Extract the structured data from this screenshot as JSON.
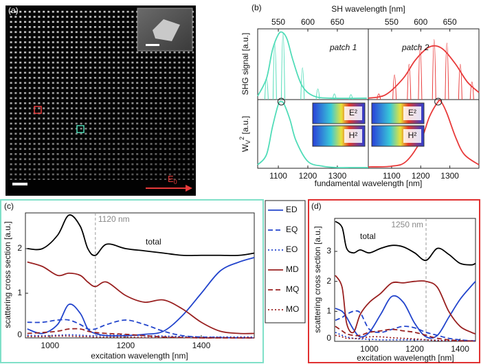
{
  "image_panel": {
    "label": "(a)",
    "field": "E",
    "field_sub": "0"
  },
  "chart_data": [
    {
      "type": "line",
      "panel": "(b)",
      "xlabel": "SH wavelength [nm]",
      "ylabel": "SHG signal [a.u.]",
      "annotation": "patch 1",
      "xlim": [
        515,
        702.5
      ],
      "xticks": [
        550,
        600,
        650
      ],
      "ylim": [
        0,
        1
      ],
      "series": [
        {
          "style": "line",
          "color": "#50dcb8",
          "x": [
            515,
            530,
            540,
            550,
            557,
            565,
            575,
            590,
            610,
            640,
            700
          ],
          "values": [
            0.05,
            0.3,
            0.7,
            0.92,
            0.95,
            0.85,
            0.55,
            0.2,
            0.05,
            0.02,
            0.02
          ]
        },
        {
          "style": "spikes",
          "color": "#50dcb8",
          "x": [
            530,
            544,
            558,
            591,
            617,
            645,
            673
          ],
          "values": [
            0.3,
            0.8,
            0.95,
            0.45,
            0.15,
            0.08,
            0.07
          ]
        }
      ]
    },
    {
      "type": "line",
      "annotation": "patch 2",
      "xlim": [
        510,
        700
      ],
      "xticks": [
        550,
        600,
        650
      ],
      "ylim": [
        0,
        1
      ],
      "series": [
        {
          "style": "line",
          "color": "#e83a3a",
          "x": [
            510,
            540,
            570,
            590,
            610,
            625,
            640,
            660,
            680,
            700
          ],
          "values": [
            0.02,
            0.07,
            0.3,
            0.55,
            0.72,
            0.76,
            0.7,
            0.5,
            0.25,
            0.1
          ]
        },
        {
          "style": "spikes",
          "color": "#e83a3a",
          "x": [
            528,
            555,
            580,
            599,
            623,
            645,
            668,
            688
          ],
          "values": [
            0.08,
            0.35,
            0.5,
            0.75,
            0.85,
            0.8,
            0.5,
            0.25
          ]
        }
      ]
    },
    {
      "type": "line",
      "xlabel": "fundamental wavelength [nm]",
      "ylabel": {
        "main": "W",
        "sub": "V",
        "sup": "2",
        "unit": " [a.u.]"
      },
      "insets": [
        "E²",
        "H²"
      ],
      "xlim": [
        1030,
        1405
      ],
      "xticks": [
        1100,
        1200,
        1300
      ],
      "ylim": [
        0,
        1
      ],
      "series": [
        {
          "style": "line",
          "color": "#50dcb8",
          "x": [
            1030,
            1060,
            1080,
            1100,
            1110,
            1120,
            1140,
            1160,
            1200,
            1250,
            1300,
            1350,
            1405
          ],
          "values": [
            0.05,
            0.2,
            0.6,
            0.93,
            0.97,
            0.93,
            0.7,
            0.4,
            0.1,
            0.03,
            0.01,
            0.01,
            0.01
          ]
        }
      ]
    },
    {
      "type": "line",
      "insets": [
        "E²",
        "H²"
      ],
      "xlim": [
        1020,
        1400
      ],
      "xticks": [
        1100,
        1200,
        1300
      ],
      "ylim": [
        0,
        1
      ],
      "series": [
        {
          "style": "line",
          "color": "#e83a3a",
          "x": [
            1020,
            1100,
            1150,
            1200,
            1230,
            1260,
            1270,
            1290,
            1320,
            1350,
            1400
          ],
          "values": [
            0.02,
            0.03,
            0.1,
            0.4,
            0.75,
            0.97,
            0.97,
            0.8,
            0.45,
            0.2,
            0.05
          ]
        }
      ]
    },
    {
      "type": "line",
      "panel": "(c)",
      "xlabel": "excitation wavelength [nm]",
      "ylabel": "scattering cross section [a.u.]",
      "annotation": "total",
      "marker": {
        "x": 1120,
        "label": "1120 nm"
      },
      "xlim": [
        935,
        1540
      ],
      "xticks": [
        1000,
        1200,
        1400
      ],
      "ylim": [
        0,
        2.8
      ],
      "yticks": [
        1,
        2
      ],
      "x": [
        940,
        980,
        1020,
        1050,
        1080,
        1100,
        1120,
        1150,
        1200,
        1250,
        1300,
        1350,
        1400,
        1450,
        1500,
        1540
      ],
      "series": [
        {
          "color": "#000000",
          "dash": "solid",
          "values": [
            2.0,
            2.0,
            2.3,
            2.75,
            2.5,
            2.0,
            1.85,
            2.1,
            2.0,
            1.95,
            1.9,
            1.85,
            1.85,
            1.85,
            1.85,
            1.9
          ]
        },
        {
          "name": "ED",
          "color": "#2244cc",
          "dash": "solid",
          "values": [
            0.2,
            0.1,
            0.3,
            0.75,
            0.55,
            0.2,
            0.1,
            0.05,
            0.05,
            0.08,
            0.15,
            0.5,
            1.0,
            1.5,
            1.7,
            1.8
          ]
        },
        {
          "name": "EQ",
          "color": "#2244cc",
          "dash": "dashed",
          "values": [
            0.35,
            0.35,
            0.4,
            0.4,
            0.3,
            0.2,
            0.2,
            0.3,
            0.4,
            0.3,
            0.15,
            0.05,
            0.02,
            0.01,
            0.0,
            0.0
          ]
        },
        {
          "name": "EO",
          "color": "#2244cc",
          "dash": "dotted",
          "values": [
            0.06,
            0.05,
            0.06,
            0.07,
            0.06,
            0.05,
            0.05,
            0.06,
            0.06,
            0.05,
            0.04,
            0.03,
            0.02,
            0.02,
            0.02,
            0.02
          ]
        },
        {
          "name": "MD",
          "color": "#992020",
          "dash": "solid",
          "values": [
            1.7,
            1.6,
            1.4,
            1.45,
            1.4,
            1.25,
            1.15,
            1.25,
            0.95,
            0.8,
            0.85,
            0.65,
            0.35,
            0.15,
            0.1,
            0.1
          ]
        },
        {
          "name": "MQ",
          "color": "#992020",
          "dash": "dashed",
          "values": [
            0.1,
            0.12,
            0.15,
            0.2,
            0.2,
            0.15,
            0.12,
            0.1,
            0.08,
            0.05,
            0.02,
            0.01,
            0.0,
            0.0,
            0.0,
            0.0
          ]
        },
        {
          "name": "MO",
          "color": "#992020",
          "dash": "dotted",
          "values": [
            0.03,
            0.03,
            0.04,
            0.04,
            0.03,
            0.03,
            0.02,
            0.02,
            0.02,
            0.01,
            0.01,
            0.01,
            0.0,
            0.0,
            0.0,
            0.0
          ]
        }
      ]
    },
    {
      "type": "line",
      "panel": "(d)",
      "xlabel": "excitation wavelength [nm]",
      "ylabel": "scattering cross section [a.u.]",
      "annotation": "total",
      "marker": {
        "x": 1250,
        "label": "1250 nm"
      },
      "xlim": [
        847,
        1468
      ],
      "xticks": [
        1000,
        1200,
        1400
      ],
      "ylim": [
        0,
        4.1
      ],
      "yticks": [
        1,
        2,
        3
      ],
      "x": [
        850,
        880,
        900,
        930,
        960,
        1000,
        1050,
        1100,
        1150,
        1200,
        1250,
        1300,
        1350,
        1400,
        1450,
        1468
      ],
      "series": [
        {
          "color": "#000000",
          "dash": "solid",
          "values": [
            4.0,
            3.8,
            3.1,
            2.95,
            3.05,
            2.95,
            3.1,
            3.2,
            3.15,
            2.95,
            2.7,
            3.1,
            2.9,
            2.6,
            2.55,
            2.6
          ]
        },
        {
          "color": "#2244cc",
          "dash": "solid",
          "values": [
            1.1,
            1.0,
            0.8,
            0.4,
            0.15,
            0.3,
            0.9,
            1.5,
            1.3,
            0.6,
            0.15,
            0.2,
            0.8,
            1.4,
            1.85,
            2.0
          ]
        },
        {
          "color": "#2244cc",
          "dash": "dashed",
          "values": [
            0.7,
            0.8,
            0.9,
            1.0,
            0.95,
            0.4,
            0.3,
            0.4,
            0.5,
            0.45,
            0.3,
            0.2,
            0.1,
            0.05,
            0.02,
            0.02
          ]
        },
        {
          "color": "#2244cc",
          "dash": "dotted",
          "values": [
            0.3,
            0.2,
            0.15,
            0.1,
            0.08,
            0.07,
            0.05,
            0.05,
            0.05,
            0.05,
            0.05,
            0.03,
            0.02,
            0.02,
            0.02,
            0.02
          ]
        },
        {
          "color": "#992020",
          "dash": "solid",
          "values": [
            2.2,
            1.8,
            0.6,
            0.3,
            0.9,
            1.3,
            1.6,
            1.95,
            1.95,
            2.0,
            2.0,
            1.8,
            1.0,
            0.5,
            0.3,
            0.25
          ]
        },
        {
          "color": "#992020",
          "dash": "dashed",
          "values": [
            0.5,
            0.35,
            0.25,
            0.2,
            0.2,
            0.3,
            0.35,
            0.4,
            0.35,
            0.3,
            0.2,
            0.1,
            0.05,
            0.02,
            0.01,
            0.01
          ]
        },
        {
          "color": "#992020",
          "dash": "dotted",
          "values": [
            0.2,
            0.15,
            0.1,
            0.1,
            0.1,
            0.15,
            0.15,
            0.12,
            0.1,
            0.08,
            0.05,
            0.03,
            0.02,
            0.01,
            0.01,
            0.01
          ]
        }
      ]
    }
  ]
}
